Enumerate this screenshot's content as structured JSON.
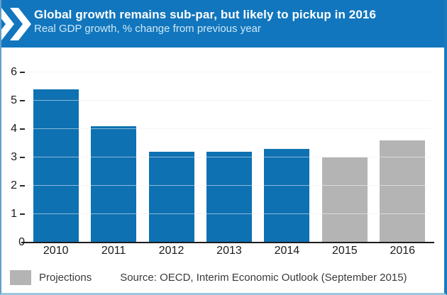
{
  "header": {
    "title": "Global growth remains sub-par, but likely to pickup in 2016",
    "subtitle": "Real GDP growth, % change from previous year",
    "logo_icon": "oecd-double-chevron",
    "background_color": "#1176bd",
    "title_color": "#ffffff",
    "subtitle_color": "#cfe9f8"
  },
  "chart_data": {
    "type": "bar",
    "title": "Global growth remains sub-par, but likely to pickup in 2016",
    "subtitle": "Real GDP growth, % change from previous year",
    "categories": [
      "2010",
      "2011",
      "2012",
      "2013",
      "2014",
      "2015",
      "2016"
    ],
    "values": [
      5.4,
      4.1,
      3.2,
      3.2,
      3.3,
      3.0,
      3.6
    ],
    "projection_categories": [
      "2015",
      "2016"
    ],
    "xlabel": "",
    "ylabel": "",
    "ylim": [
      0,
      6
    ],
    "yticks": [
      0,
      1,
      2,
      3,
      4,
      5,
      6
    ],
    "grid": true,
    "legend_position": "bottom-left",
    "bar_color_actual": "#0e71b2",
    "bar_color_projection": "#b4b4b4"
  },
  "legend": {
    "swatch_color": "#b4b4b4",
    "label": "Projections"
  },
  "source": "Source: OECD, Interim Economic Outlook (September 2015)"
}
